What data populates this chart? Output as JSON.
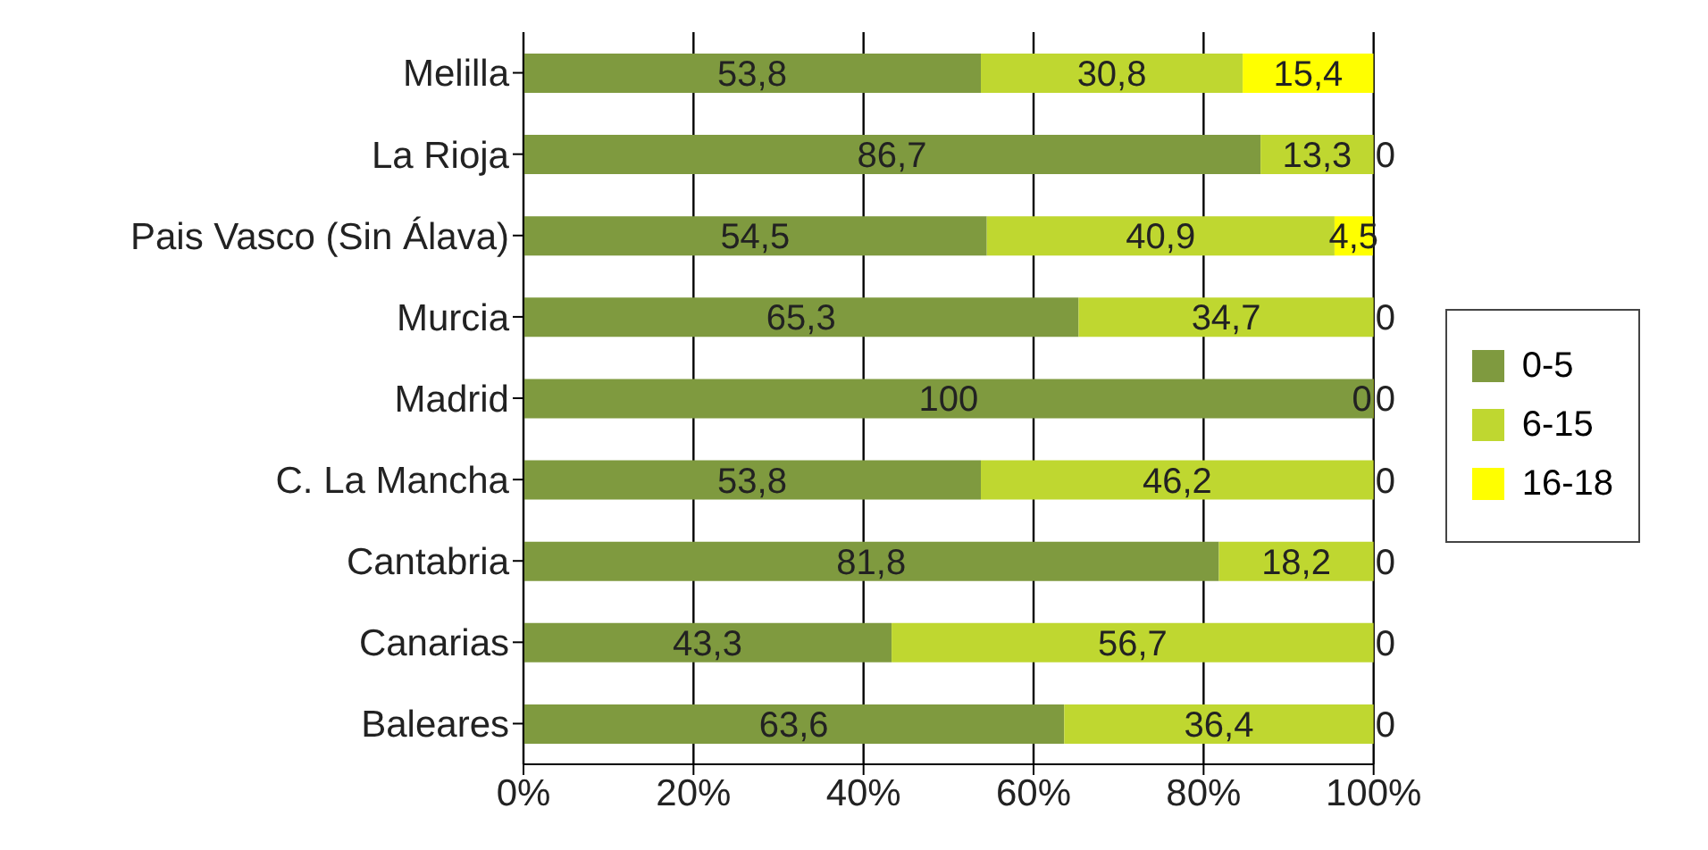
{
  "chart_data": {
    "type": "bar",
    "orientation": "horizontal",
    "stacked": true,
    "categories": [
      "Melilla",
      "La Rioja",
      "Pais Vasco (Sin Álava)",
      "Murcia",
      "Madrid",
      "C. La Mancha",
      "Cantabria",
      "Canarias",
      "Baleares"
    ],
    "series": [
      {
        "name": "0-5",
        "color": "#7f9a3f",
        "values": [
          53.8,
          86.7,
          54.5,
          65.3,
          100,
          53.8,
          81.8,
          43.3,
          63.6
        ],
        "value_labels": [
          "53,8",
          "86,7",
          "54,5",
          "65,3",
          "100",
          "53,8",
          "81,8",
          "43,3",
          "63,6"
        ]
      },
      {
        "name": "6-15",
        "color": "#bfd730",
        "values": [
          30.8,
          13.3,
          40.9,
          34.7,
          0,
          46.2,
          18.2,
          56.7,
          36.4
        ],
        "value_labels": [
          "30,8",
          "13,3",
          "40,9",
          "34,7",
          "0",
          "46,2",
          "18,2",
          "56,7",
          "36,4"
        ]
      },
      {
        "name": "16-18",
        "color": "#ffff00",
        "values": [
          15.4,
          0,
          4.5,
          0,
          0,
          0,
          0,
          0,
          0
        ],
        "value_labels": [
          "15,4",
          "0",
          "4,5",
          "0",
          "0",
          "0",
          "0",
          "0",
          "0"
        ]
      }
    ],
    "xlim": [
      0,
      100
    ],
    "xticks": [
      {
        "value": 0,
        "label": "0%"
      },
      {
        "value": 20,
        "label": "20%"
      },
      {
        "value": 40,
        "label": "40%"
      },
      {
        "value": 60,
        "label": "60%"
      },
      {
        "value": 80,
        "label": "80%"
      },
      {
        "value": 100,
        "label": "100%"
      }
    ],
    "grid": "x",
    "legend": "right"
  }
}
